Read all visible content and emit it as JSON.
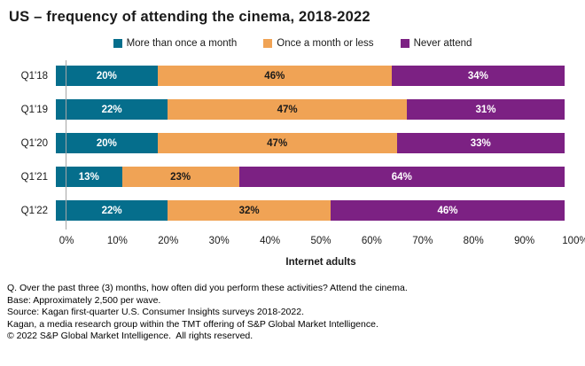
{
  "title": "US – frequency of attending the cinema, 2018-2022",
  "colors": {
    "teal": "#056E8C",
    "orange": "#F0A355",
    "purple": "#7C2183",
    "axis": "#A6A6A6"
  },
  "chart_data": {
    "type": "bar",
    "orientation": "horizontal",
    "stacked": true,
    "title": "US – frequency of attending the cinema, 2018-2022",
    "categories": [
      "Q1'18",
      "Q1'19",
      "Q1'20",
      "Q1'21",
      "Q1'22"
    ],
    "series": [
      {
        "name": "More than once a month",
        "color": "#056E8C",
        "label_color": "#FFFFFF",
        "values": [
          20,
          22,
          20,
          13,
          22
        ]
      },
      {
        "name": "Once a month or less",
        "color": "#F0A355",
        "label_color": "#1A1A1A",
        "values": [
          46,
          47,
          47,
          23,
          32
        ]
      },
      {
        "name": "Never attend",
        "color": "#7C2183",
        "label_color": "#FFFFFF",
        "values": [
          34,
          31,
          33,
          64,
          46
        ]
      }
    ],
    "value_suffix": "%",
    "xlabel": "Internet adults",
    "ylabel": "",
    "xlim": [
      0,
      100
    ],
    "x_ticks": [
      "0%",
      "10%",
      "20%",
      "30%",
      "40%",
      "50%",
      "60%",
      "70%",
      "80%",
      "90%",
      "100%"
    ],
    "grid": false,
    "legend_position": "top"
  },
  "footnotes": [
    "Q. Over the past three (3) months, how often did you perform these activities? Attend the cinema.",
    "Base: Approximately 2,500 per wave.",
    "Source: Kagan first-quarter U.S. Consumer Insights surveys 2018-2022.",
    "Kagan, a media research group within the TMT offering of S&P Global Market Intelligence.",
    "© 2022 S&P Global Market Intelligence.  All rights reserved."
  ]
}
